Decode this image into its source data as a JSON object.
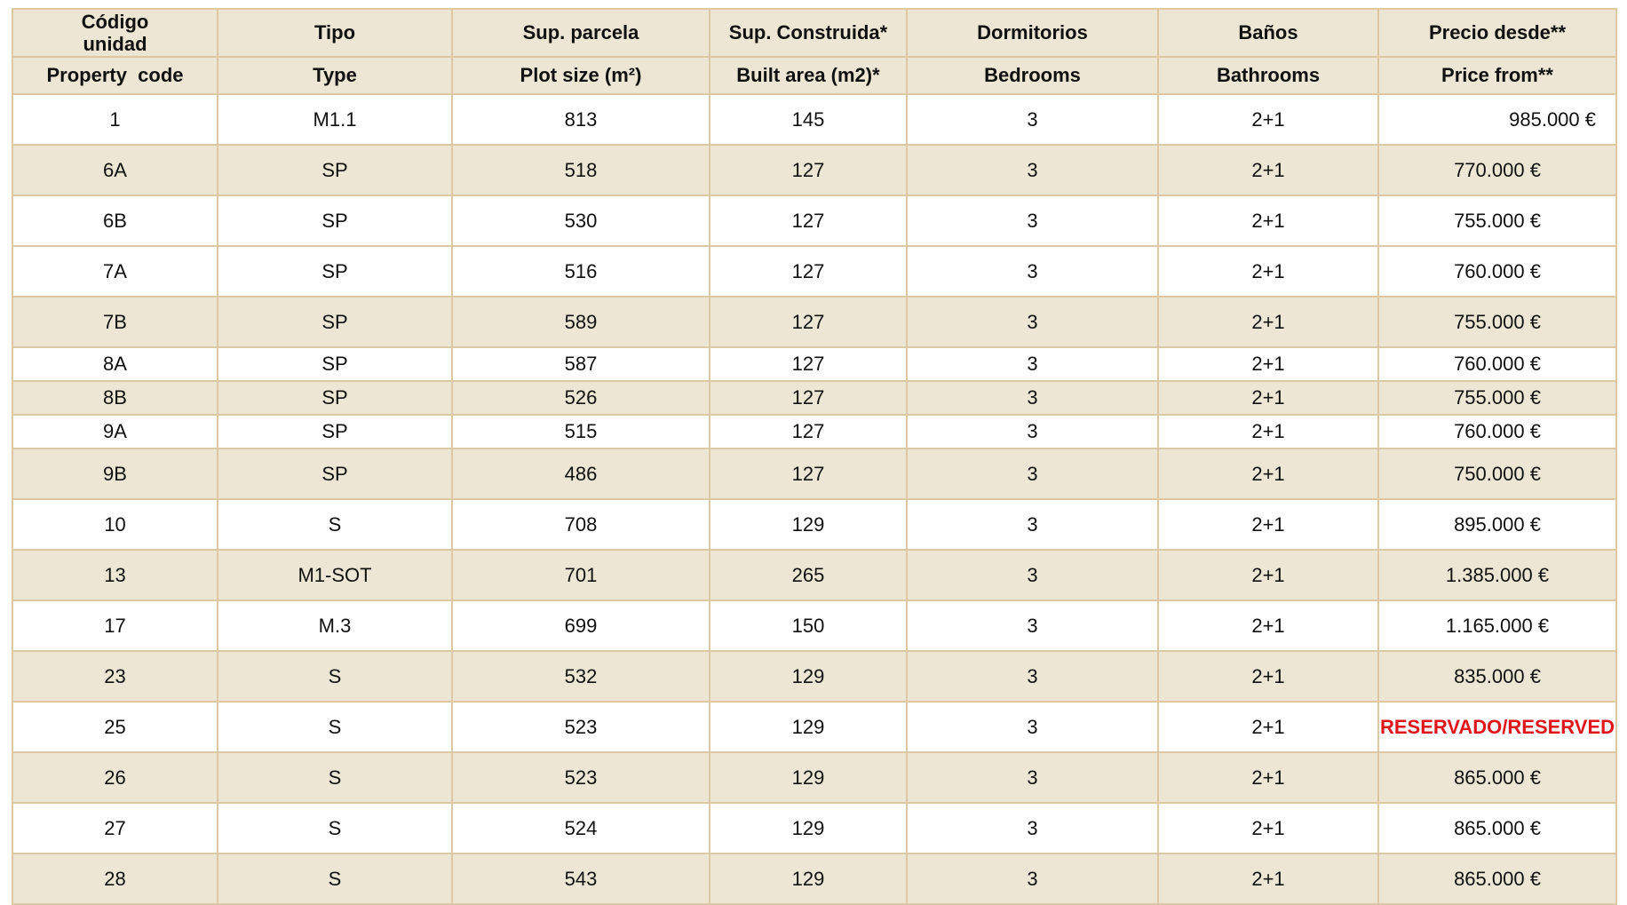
{
  "header": {
    "row1": [
      "Código unidad",
      "Tipo",
      "Sup. parcela",
      "Sup. Construida*",
      "Dormitorios",
      "Baños",
      "Precio desde**"
    ],
    "row2": [
      "Property  code",
      "Type",
      "Plot size (m²)",
      "Built area (m2)*",
      "Bedrooms",
      "Bathrooms",
      "Price from**"
    ]
  },
  "rows": [
    {
      "code": "1",
      "type": "M1.1",
      "plot": "813",
      "built": "145",
      "bedrooms": "3",
      "bathrooms": "2+1",
      "price": "985.000 €"
    },
    {
      "code": "6A",
      "type": "SP",
      "plot": "518",
      "built": "127",
      "bedrooms": "3",
      "bathrooms": "2+1",
      "price": "770.000 €"
    },
    {
      "code": "6B",
      "type": "SP",
      "plot": "530",
      "built": "127",
      "bedrooms": "3",
      "bathrooms": "2+1",
      "price": "755.000 €"
    },
    {
      "code": "7A",
      "type": "SP",
      "plot": "516",
      "built": "127",
      "bedrooms": "3",
      "bathrooms": "2+1",
      "price": "760.000 €"
    },
    {
      "code": "7B",
      "type": "SP",
      "plot": "589",
      "built": "127",
      "bedrooms": "3",
      "bathrooms": "2+1",
      "price": "755.000 €"
    },
    {
      "code": "8A",
      "type": "SP",
      "plot": "587",
      "built": "127",
      "bedrooms": "3",
      "bathrooms": "2+1",
      "price": "760.000 €"
    },
    {
      "code": "8B",
      "type": "SP",
      "plot": "526",
      "built": "127",
      "bedrooms": "3",
      "bathrooms": "2+1",
      "price": "755.000 €"
    },
    {
      "code": "9A",
      "type": "SP",
      "plot": "515",
      "built": "127",
      "bedrooms": "3",
      "bathrooms": "2+1",
      "price": "760.000 €"
    },
    {
      "code": "9B",
      "type": "SP",
      "plot": "486",
      "built": "127",
      "bedrooms": "3",
      "bathrooms": "2+1",
      "price": "750.000 €"
    },
    {
      "code": "10",
      "type": "S",
      "plot": "708",
      "built": "129",
      "bedrooms": "3",
      "bathrooms": "2+1",
      "price": "895.000 €"
    },
    {
      "code": "13",
      "type": "M1-SOT",
      "plot": "701",
      "built": "265",
      "bedrooms": "3",
      "bathrooms": "2+1",
      "price": "1.385.000 €"
    },
    {
      "code": "17",
      "type": "M.3",
      "plot": "699",
      "built": "150",
      "bedrooms": "3",
      "bathrooms": "2+1",
      "price": "1.165.000 €"
    },
    {
      "code": "23",
      "type": "S",
      "plot": "532",
      "built": "129",
      "bedrooms": "3",
      "bathrooms": "2+1",
      "price": "835.000 €"
    },
    {
      "code": "25",
      "type": "S",
      "plot": "523",
      "built": "129",
      "bedrooms": "3",
      "bathrooms": "2+1",
      "price": "RESERVADO/RESERVED"
    },
    {
      "code": "26",
      "type": "S",
      "plot": "523",
      "built": "129",
      "bedrooms": "3",
      "bathrooms": "2+1",
      "price": "865.000 €"
    },
    {
      "code": "27",
      "type": "S",
      "plot": "524",
      "built": "129",
      "bedrooms": "3",
      "bathrooms": "2+1",
      "price": "865.000 €"
    },
    {
      "code": "28",
      "type": "S",
      "plot": "543",
      "built": "129",
      "bedrooms": "3",
      "bathrooms": "2+1",
      "price": "865.000 €"
    }
  ],
  "colors": {
    "header_bg": "#eee6d4",
    "shaded_row_bg": "#eee6d4",
    "border": "#dcc9a3",
    "reserved_text": "#e0161b"
  }
}
